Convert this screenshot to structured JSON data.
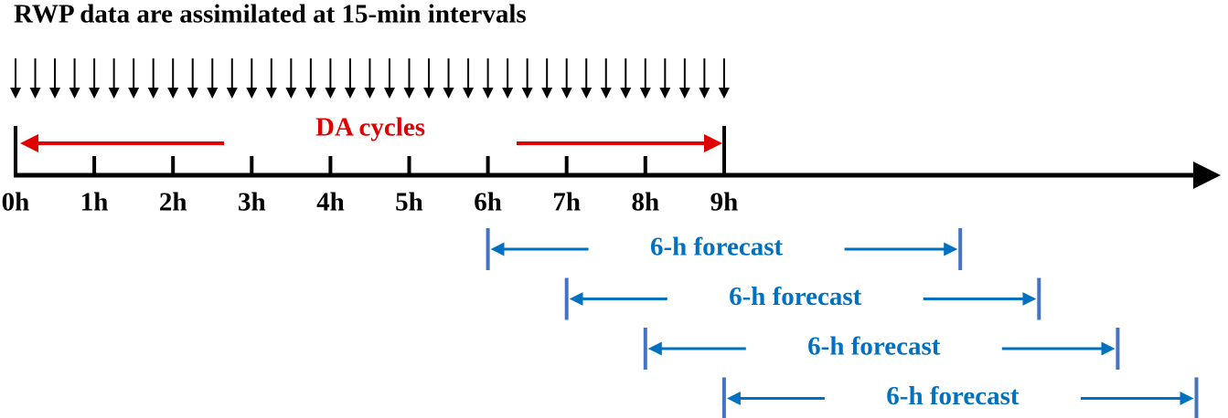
{
  "title": "RWP data are assimilated at 15-min intervals",
  "da_label": "DA cycles",
  "time_labels": [
    "0h",
    "1h",
    "2h",
    "3h",
    "4h",
    "5h",
    "6h",
    "7h",
    "8h",
    "9h"
  ],
  "forecasts": [
    "6-h forecast",
    "6-h forecast",
    "6-h forecast",
    "6-h forecast"
  ]
}
